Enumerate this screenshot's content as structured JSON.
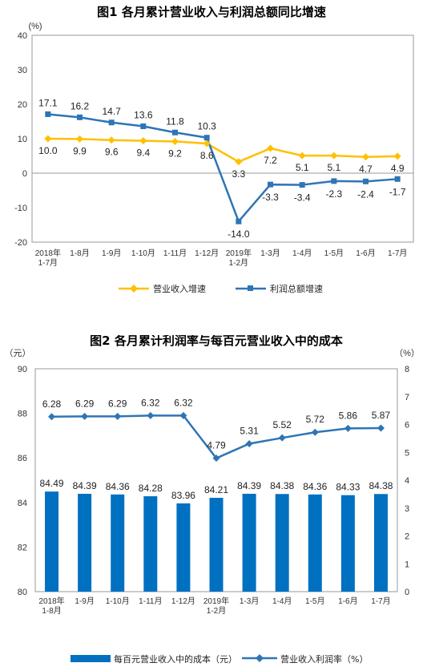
{
  "colors": {
    "gold": "#FFC000",
    "blue": "#2E75B6",
    "bar": "#0070C0",
    "axis": "#999999"
  },
  "chart_data": [
    {
      "type": "line",
      "title": "图1  各月累计营业收入与利润总额同比增速",
      "yunit": "(%)",
      "ylim": [
        -20,
        40
      ],
      "yticks": [
        "40",
        "30",
        "20",
        "10",
        "0",
        "-10",
        "-20"
      ],
      "ytick_values": [
        40,
        30,
        20,
        10,
        0,
        -10,
        -20
      ],
      "categories": [
        [
          "2018年",
          "1-7月"
        ],
        [
          "1-8月"
        ],
        [
          "1-9月"
        ],
        [
          "1-10月"
        ],
        [
          "1-11月"
        ],
        [
          "1-12月"
        ],
        [
          "2019年",
          "1-2月"
        ],
        [
          "1-3月"
        ],
        [
          "1-4月"
        ],
        [
          "1-5月"
        ],
        [
          "1-6月"
        ],
        [
          "1-7月"
        ]
      ],
      "series": [
        {
          "name": "营业收入增速",
          "values": [
            10.0,
            9.9,
            9.6,
            9.4,
            9.2,
            8.6,
            3.3,
            7.2,
            5.1,
            5.1,
            4.7,
            4.9
          ],
          "labels": [
            "10.0",
            "9.9",
            "9.6",
            "9.4",
            "9.2",
            "8.6",
            "3.3",
            "7.2",
            "5.1",
            "5.1",
            "4.7",
            "4.9"
          ]
        },
        {
          "name": "利润总额增速",
          "values": [
            17.1,
            16.2,
            14.7,
            13.6,
            11.8,
            10.3,
            -14.0,
            -3.3,
            -3.4,
            -2.3,
            -2.4,
            -1.7
          ],
          "labels": [
            "17.1",
            "16.2",
            "14.7",
            "13.6",
            "11.8",
            "10.3",
            "-14.0",
            "-3.3",
            "-3.4",
            "-2.3",
            "-2.4",
            "-1.7"
          ]
        }
      ],
      "legend_position": "bottom"
    },
    {
      "type": "bar",
      "title": "图2  各月累计利润率与每百元营业收入中的成本",
      "y_left_unit": "（元）",
      "y_right_unit": "（%）",
      "ylim_left": [
        80,
        90
      ],
      "yticks_left": [
        "90",
        "88",
        "86",
        "84",
        "82",
        "80"
      ],
      "ytick_values_left": [
        90,
        88,
        86,
        84,
        82,
        80
      ],
      "ylim_right": [
        0,
        8
      ],
      "yticks_right": [
        "8",
        "7",
        "6",
        "5",
        "4",
        "3",
        "2",
        "1",
        "0"
      ],
      "ytick_values_right": [
        8,
        7,
        6,
        5,
        4,
        3,
        2,
        1,
        0
      ],
      "categories": [
        [
          "2018年",
          "1-8月"
        ],
        [
          "1-9月"
        ],
        [
          "1-10月"
        ],
        [
          "1-11月"
        ],
        [
          "1-12月"
        ],
        [
          "2019年",
          "1-2月"
        ],
        [
          "1-3月"
        ],
        [
          "1-4月"
        ],
        [
          "1-5月"
        ],
        [
          "1-6月"
        ],
        [
          "1-7月"
        ]
      ],
      "bar_series": {
        "name": "每百元营业收入中的成本（元）",
        "values": [
          84.49,
          84.39,
          84.36,
          84.28,
          83.96,
          84.21,
          84.39,
          84.38,
          84.36,
          84.33,
          84.38
        ],
        "labels": [
          "84.49",
          "84.39",
          "84.36",
          "84.28",
          "83.96",
          "84.21",
          "84.39",
          "84.38",
          "84.36",
          "84.33",
          "84.38"
        ]
      },
      "line_series": {
        "name": "营业收入利润率（%）",
        "values": [
          6.28,
          6.29,
          6.29,
          6.32,
          6.32,
          4.79,
          5.31,
          5.52,
          5.72,
          5.86,
          5.87
        ],
        "labels": [
          "6.28",
          "6.29",
          "6.29",
          "6.32",
          "6.32",
          "4.79",
          "5.31",
          "5.52",
          "5.72",
          "5.86",
          "5.87"
        ]
      },
      "legend_position": "bottom"
    }
  ]
}
